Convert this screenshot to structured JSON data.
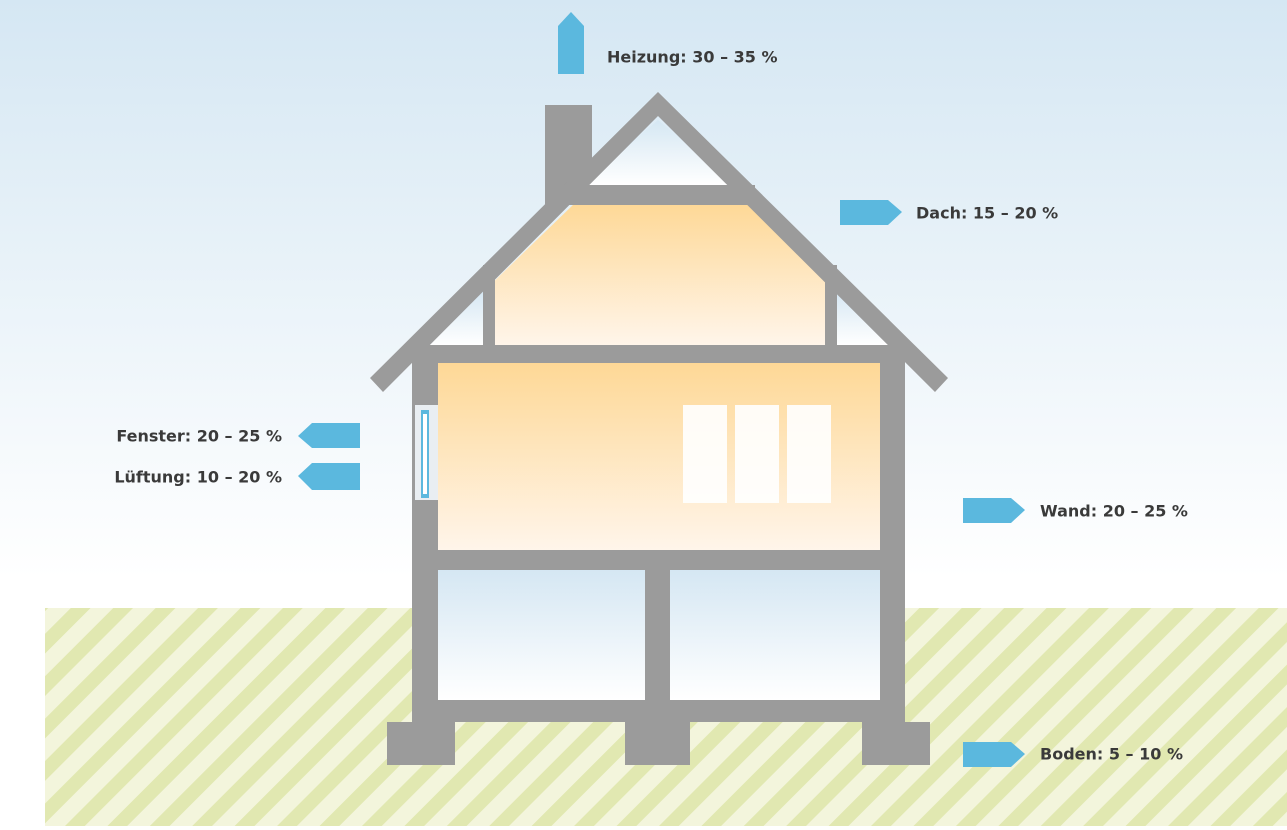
{
  "labels": {
    "heizung": "Heizung: 30 – 35 %",
    "dach": "Dach: 15 – 20 %",
    "fenster": "Fenster: 20 – 25 %",
    "lueftung": "Lüftung: 10 – 20 %",
    "wand": "Wand: 20 – 25 %",
    "boden": "Boden: 5 – 10 %"
  }
}
